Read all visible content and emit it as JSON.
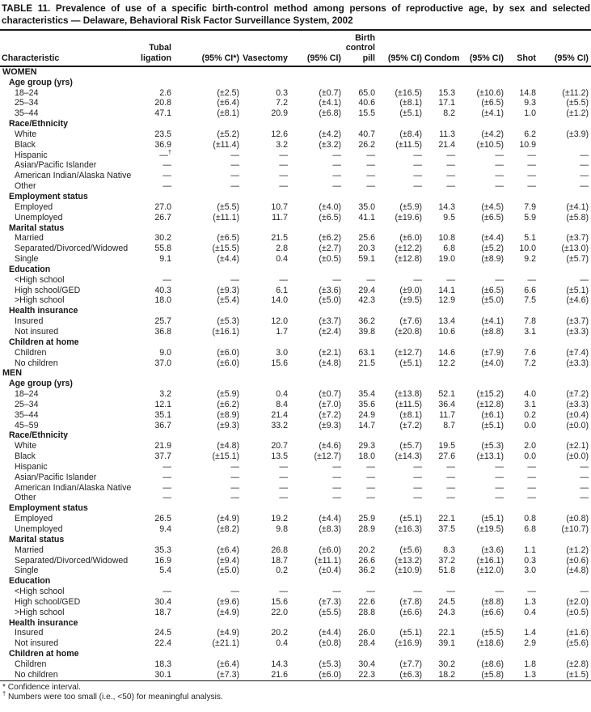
{
  "title": "TABLE 11. Prevalence of use of a specific birth-control method among persons of reproductive age, by sex and selected characteristics — Delaware, Behavioral Risk Factor Surveillance System, 2002",
  "table": {
    "headers": [
      "Characteristic",
      "Tubal\nligation",
      "(95% CI*)",
      "Vasectomy",
      "(95% CI)",
      "Birth\ncontrol\npill",
      "(95% CI)",
      "Condom",
      "(95% CI)",
      "Shot",
      "(95% CI)"
    ],
    "rows": [
      {
        "type": "section",
        "label": "WOMEN"
      },
      {
        "type": "subsection",
        "label": "Age group (yrs)"
      },
      {
        "type": "data",
        "label": "18–24",
        "values": [
          "2.6",
          "(±2.5)",
          "0.3",
          "(±0.7)",
          "65.0",
          "(±16.5)",
          "15.3",
          "(±10.6)",
          "14.8",
          "(±11.2)"
        ]
      },
      {
        "type": "data",
        "label": "25–34",
        "values": [
          "20.8",
          "(±6.4)",
          "7.2",
          "(±4.1)",
          "40.6",
          "(±8.1)",
          "17.1",
          "(±6.5)",
          "9.3",
          "(±5.5)"
        ]
      },
      {
        "type": "data",
        "label": "35–44",
        "values": [
          "47.1",
          "(±8.1)",
          "20.9",
          "(±6.8)",
          "15.5",
          "(±5.1)",
          "8.2",
          "(±4.1)",
          "1.0",
          "(±1.2)"
        ]
      },
      {
        "type": "subsection",
        "label": "Race/Ethnicity"
      },
      {
        "type": "data",
        "label": "White",
        "values": [
          "23.5",
          "(±5.2)",
          "12.6",
          "(±4.2)",
          "40.7",
          "(±8.4)",
          "11.3",
          "(±4.2)",
          "6.2",
          "(±3.9)"
        ]
      },
      {
        "type": "data",
        "label": "Black",
        "values": [
          "36.9",
          "(±11.4)",
          "3.2",
          "(±3.2)",
          "26.2",
          "(±11.5)",
          "21.4",
          "(±10.5)",
          "10.9",
          ""
        ]
      },
      {
        "type": "data",
        "label": "Hispanic",
        "values": [
          "—†",
          "—",
          "—",
          "—",
          "—",
          "—",
          "—",
          "—",
          "—",
          "—"
        ]
      },
      {
        "type": "data",
        "label": "Asian/Pacific Islander",
        "values": [
          "—",
          "—",
          "—",
          "—",
          "—",
          "—",
          "—",
          "—",
          "—",
          "—"
        ]
      },
      {
        "type": "data",
        "label": "American Indian/Alaska Native",
        "values": [
          "—",
          "—",
          "—",
          "—",
          "—",
          "—",
          "—",
          "—",
          "—",
          "—"
        ]
      },
      {
        "type": "data",
        "label": "Other",
        "values": [
          "—",
          "—",
          "—",
          "—",
          "—",
          "—",
          "—",
          "—",
          "—",
          "—"
        ]
      },
      {
        "type": "subsection",
        "label": "Employment status"
      },
      {
        "type": "data",
        "label": "Employed",
        "values": [
          "27.0",
          "(±5.5)",
          "10.7",
          "(±4.0)",
          "35.0",
          "(±5.9)",
          "14.3",
          "(±4.5)",
          "7.9",
          "(±4.1)"
        ]
      },
      {
        "type": "data",
        "label": "Unemployed",
        "values": [
          "26.7",
          "(±11.1)",
          "11.7",
          "(±6.5)",
          "41.1",
          "(±19.6)",
          "9.5",
          "(±6.5)",
          "5.9",
          "(±5.8)"
        ]
      },
      {
        "type": "subsection",
        "label": "Marital status"
      },
      {
        "type": "data",
        "label": "Married",
        "values": [
          "30.2",
          "(±6.5)",
          "21.5",
          "(±6.2)",
          "25.6",
          "(±6.0)",
          "10.8",
          "(±4.4)",
          "5.1",
          "(±3.7)"
        ]
      },
      {
        "type": "data",
        "label": "Separated/Divorced/Widowed",
        "values": [
          "55.8",
          "(±15.5)",
          "2.8",
          "(±2.7)",
          "20.3",
          "(±12.2)",
          "6.8",
          "(±5.2)",
          "10.0",
          "(±13.0)"
        ]
      },
      {
        "type": "data",
        "label": "Single",
        "values": [
          "9.1",
          "(±4.4)",
          "0.4",
          "(±0.5)",
          "59.1",
          "(±12.8)",
          "19.0",
          "(±8.9)",
          "9.2",
          "(±5.7)"
        ]
      },
      {
        "type": "subsection",
        "label": "Education"
      },
      {
        "type": "data",
        "label": "<High school",
        "values": [
          "—",
          "—",
          "—",
          "—",
          "—",
          "—",
          "—",
          "—",
          "—",
          "—"
        ]
      },
      {
        "type": "data",
        "label": "High school/GED",
        "values": [
          "40.3",
          "(±9.3)",
          "6.1",
          "(±3.6)",
          "29.4",
          "(±9.0)",
          "14.1",
          "(±6.5)",
          "6.6",
          "(±5.1)"
        ]
      },
      {
        "type": "data",
        "label": ">High school",
        "values": [
          "18.0",
          "(±5.4)",
          "14.0",
          "(±5.0)",
          "42.3",
          "(±9.5)",
          "12.9",
          "(±5.0)",
          "7.5",
          "(±4.6)"
        ]
      },
      {
        "type": "subsection",
        "label": "Health insurance"
      },
      {
        "type": "data",
        "label": "Insured",
        "values": [
          "25.7",
          "(±5.3)",
          "12.0",
          "(±3.7)",
          "36.2",
          "(±7.6)",
          "13.4",
          "(±4.1)",
          "7.8",
          "(±3.7)"
        ]
      },
      {
        "type": "data",
        "label": "Not insured",
        "values": [
          "36.8",
          "(±16.1)",
          "1.7",
          "(±2.4)",
          "39.8",
          "(±20.8)",
          "10.6",
          "(±8.8)",
          "3.1",
          "(±3.3)"
        ]
      },
      {
        "type": "subsection",
        "label": "Children at home"
      },
      {
        "type": "data",
        "label": "Children",
        "values": [
          "9.0",
          "(±6.0)",
          "3.0",
          "(±2.1)",
          "63.1",
          "(±12.7)",
          "14.6",
          "(±7.9)",
          "7.6",
          "(±7.4)"
        ]
      },
      {
        "type": "data",
        "label": "No children",
        "values": [
          "37.0",
          "(±6.0)",
          "15.6",
          "(±4.8)",
          "21.5",
          "(±5.1)",
          "12.2",
          "(±4.0)",
          "7.2",
          "(±3.3)"
        ]
      },
      {
        "type": "section",
        "label": "MEN"
      },
      {
        "type": "subsection",
        "label": "Age group (yrs)"
      },
      {
        "type": "data",
        "label": "18–24",
        "values": [
          "3.2",
          "(±5.9)",
          "0.4",
          "(±0.7)",
          "35.4",
          "(±13.8)",
          "52.1",
          "(±15.2)",
          "4.0",
          "(±7.2)"
        ]
      },
      {
        "type": "data",
        "label": "25–34",
        "values": [
          "12.1",
          "(±6.2)",
          "8.4",
          "(±7.0)",
          "35.6",
          "(±11.5)",
          "36.4",
          "(±12.8)",
          "3.1",
          "(±3.3)"
        ]
      },
      {
        "type": "data",
        "label": "35–44",
        "values": [
          "35.1",
          "(±8.9)",
          "21.4",
          "(±7.2)",
          "24.9",
          "(±8.1)",
          "11.7",
          "(±6.1)",
          "0.2",
          "(±0.4)"
        ]
      },
      {
        "type": "data",
        "label": "45–59",
        "values": [
          "36.7",
          "(±9.3)",
          "33.2",
          "(±9.3)",
          "14.7",
          "(±7.2)",
          "8.7",
          "(±5.1)",
          "0.0",
          "(±0.0)"
        ]
      },
      {
        "type": "subsection",
        "label": "Race/Ethnicity"
      },
      {
        "type": "data",
        "label": "White",
        "values": [
          "21.9",
          "(±4.8)",
          "20.7",
          "(±4.6)",
          "29.3",
          "(±5.7)",
          "19.5",
          "(±5.3)",
          "2.0",
          "(±2.1)"
        ]
      },
      {
        "type": "data",
        "label": "Black",
        "values": [
          "37.7",
          "(±15.1)",
          "13.5",
          "(±12.7)",
          "18.0",
          "(±14.3)",
          "27.6",
          "(±13.1)",
          "0.0",
          "(±0.0)"
        ]
      },
      {
        "type": "data",
        "label": "Hispanic",
        "values": [
          "—",
          "—",
          "—",
          "—",
          "—",
          "—",
          "—",
          "—",
          "—",
          "—"
        ]
      },
      {
        "type": "data",
        "label": "Asian/Pacific Islander",
        "values": [
          "—",
          "—",
          "—",
          "—",
          "—",
          "—",
          "—",
          "—",
          "—",
          "—"
        ]
      },
      {
        "type": "data",
        "label": "American Indian/Alaska Native",
        "values": [
          "—",
          "—",
          "—",
          "—",
          "—",
          "—",
          "—",
          "—",
          "—",
          "—"
        ]
      },
      {
        "type": "data",
        "label": "Other",
        "values": [
          "—",
          "—",
          "—",
          "—",
          "—",
          "—",
          "—",
          "—",
          "—",
          "—"
        ]
      },
      {
        "type": "subsection",
        "label": "Employment status"
      },
      {
        "type": "data",
        "label": "Employed",
        "values": [
          "26.5",
          "(±4.9)",
          "19.2",
          "(±4.4)",
          "25.9",
          "(±5.1)",
          "22.1",
          "(±5.1)",
          "0.8",
          "(±0.8)"
        ]
      },
      {
        "type": "data",
        "label": "Unemployed",
        "values": [
          "9.4",
          "(±8.2)",
          "9.8",
          "(±8.3)",
          "28.9",
          "(±16.3)",
          "37.5",
          "(±19.5)",
          "6.8",
          "(±10.7)"
        ]
      },
      {
        "type": "subsection",
        "label": "Marital status"
      },
      {
        "type": "data",
        "label": "Married",
        "values": [
          "35.3",
          "(±6.4)",
          "26.8",
          "(±6.0)",
          "20.2",
          "(±5.6)",
          "8.3",
          "(±3.6)",
          "1.1",
          "(±1.2)"
        ]
      },
      {
        "type": "data",
        "label": "Separated/Divorced/Widowed",
        "values": [
          "16.9",
          "(±9.4)",
          "18.7",
          "(±11.1)",
          "26.6",
          "(±13.2)",
          "37.2",
          "(±16.1)",
          "0.3",
          "(±0.6)"
        ]
      },
      {
        "type": "data",
        "label": "Single",
        "values": [
          "5.4",
          "(±5.0)",
          "0.2",
          "(±0.4)",
          "36.2",
          "(±10.9)",
          "51.8",
          "(±12.0)",
          "3.0",
          "(±4.8)"
        ]
      },
      {
        "type": "subsection",
        "label": "Education"
      },
      {
        "type": "data",
        "label": "<High school",
        "values": [
          "—",
          "—",
          "—",
          "—",
          "—",
          "—",
          "—",
          "—",
          "—",
          "—"
        ]
      },
      {
        "type": "data",
        "label": "High school/GED",
        "values": [
          "30.4",
          "(±9.6)",
          "15.6",
          "(±7.3)",
          "22.6",
          "(±7.8)",
          "24.5",
          "(±8.8)",
          "1.3",
          "(±2.0)"
        ]
      },
      {
        "type": "data",
        "label": ">High school",
        "values": [
          "18.7",
          "(±4.9)",
          "22.0",
          "(±5.5)",
          "28.8",
          "(±6.6)",
          "24.3",
          "(±6.6)",
          "0.4",
          "(±0.5)"
        ]
      },
      {
        "type": "subsection",
        "label": "Health insurance"
      },
      {
        "type": "data",
        "label": "Insured",
        "values": [
          "24.5",
          "(±4.9)",
          "20.2",
          "(±4.4)",
          "26.0",
          "(±5.1)",
          "22.1",
          "(±5.5)",
          "1.4",
          "(±1.6)"
        ]
      },
      {
        "type": "data",
        "label": "Not insured",
        "values": [
          "22.4",
          "(±21.1)",
          "0.4",
          "(±0.8)",
          "28.4",
          "(±16.9)",
          "39.1",
          "(±18.6)",
          "2.9",
          "(±5.6)"
        ]
      },
      {
        "type": "subsection",
        "label": "Children at home"
      },
      {
        "type": "data",
        "label": "Children",
        "values": [
          "18.3",
          "(±6.4)",
          "14.3",
          "(±5.3)",
          "30.4",
          "(±7.7)",
          "30.2",
          "(±8.6)",
          "1.8",
          "(±2.8)"
        ]
      },
      {
        "type": "data",
        "label": "No children",
        "values": [
          "30.1",
          "(±7.3)",
          "21.6",
          "(±6.0)",
          "22.3",
          "(±6.3)",
          "18.2",
          "(±5.8)",
          "1.3",
          "(±1.5)"
        ]
      }
    ]
  },
  "footnotes": [
    {
      "marker": "*",
      "superscript": false,
      "text": "Confidence interval."
    },
    {
      "marker": "†",
      "superscript": true,
      "text": "Numbers were too small (i.e., <50) for meaningful analysis."
    }
  ]
}
